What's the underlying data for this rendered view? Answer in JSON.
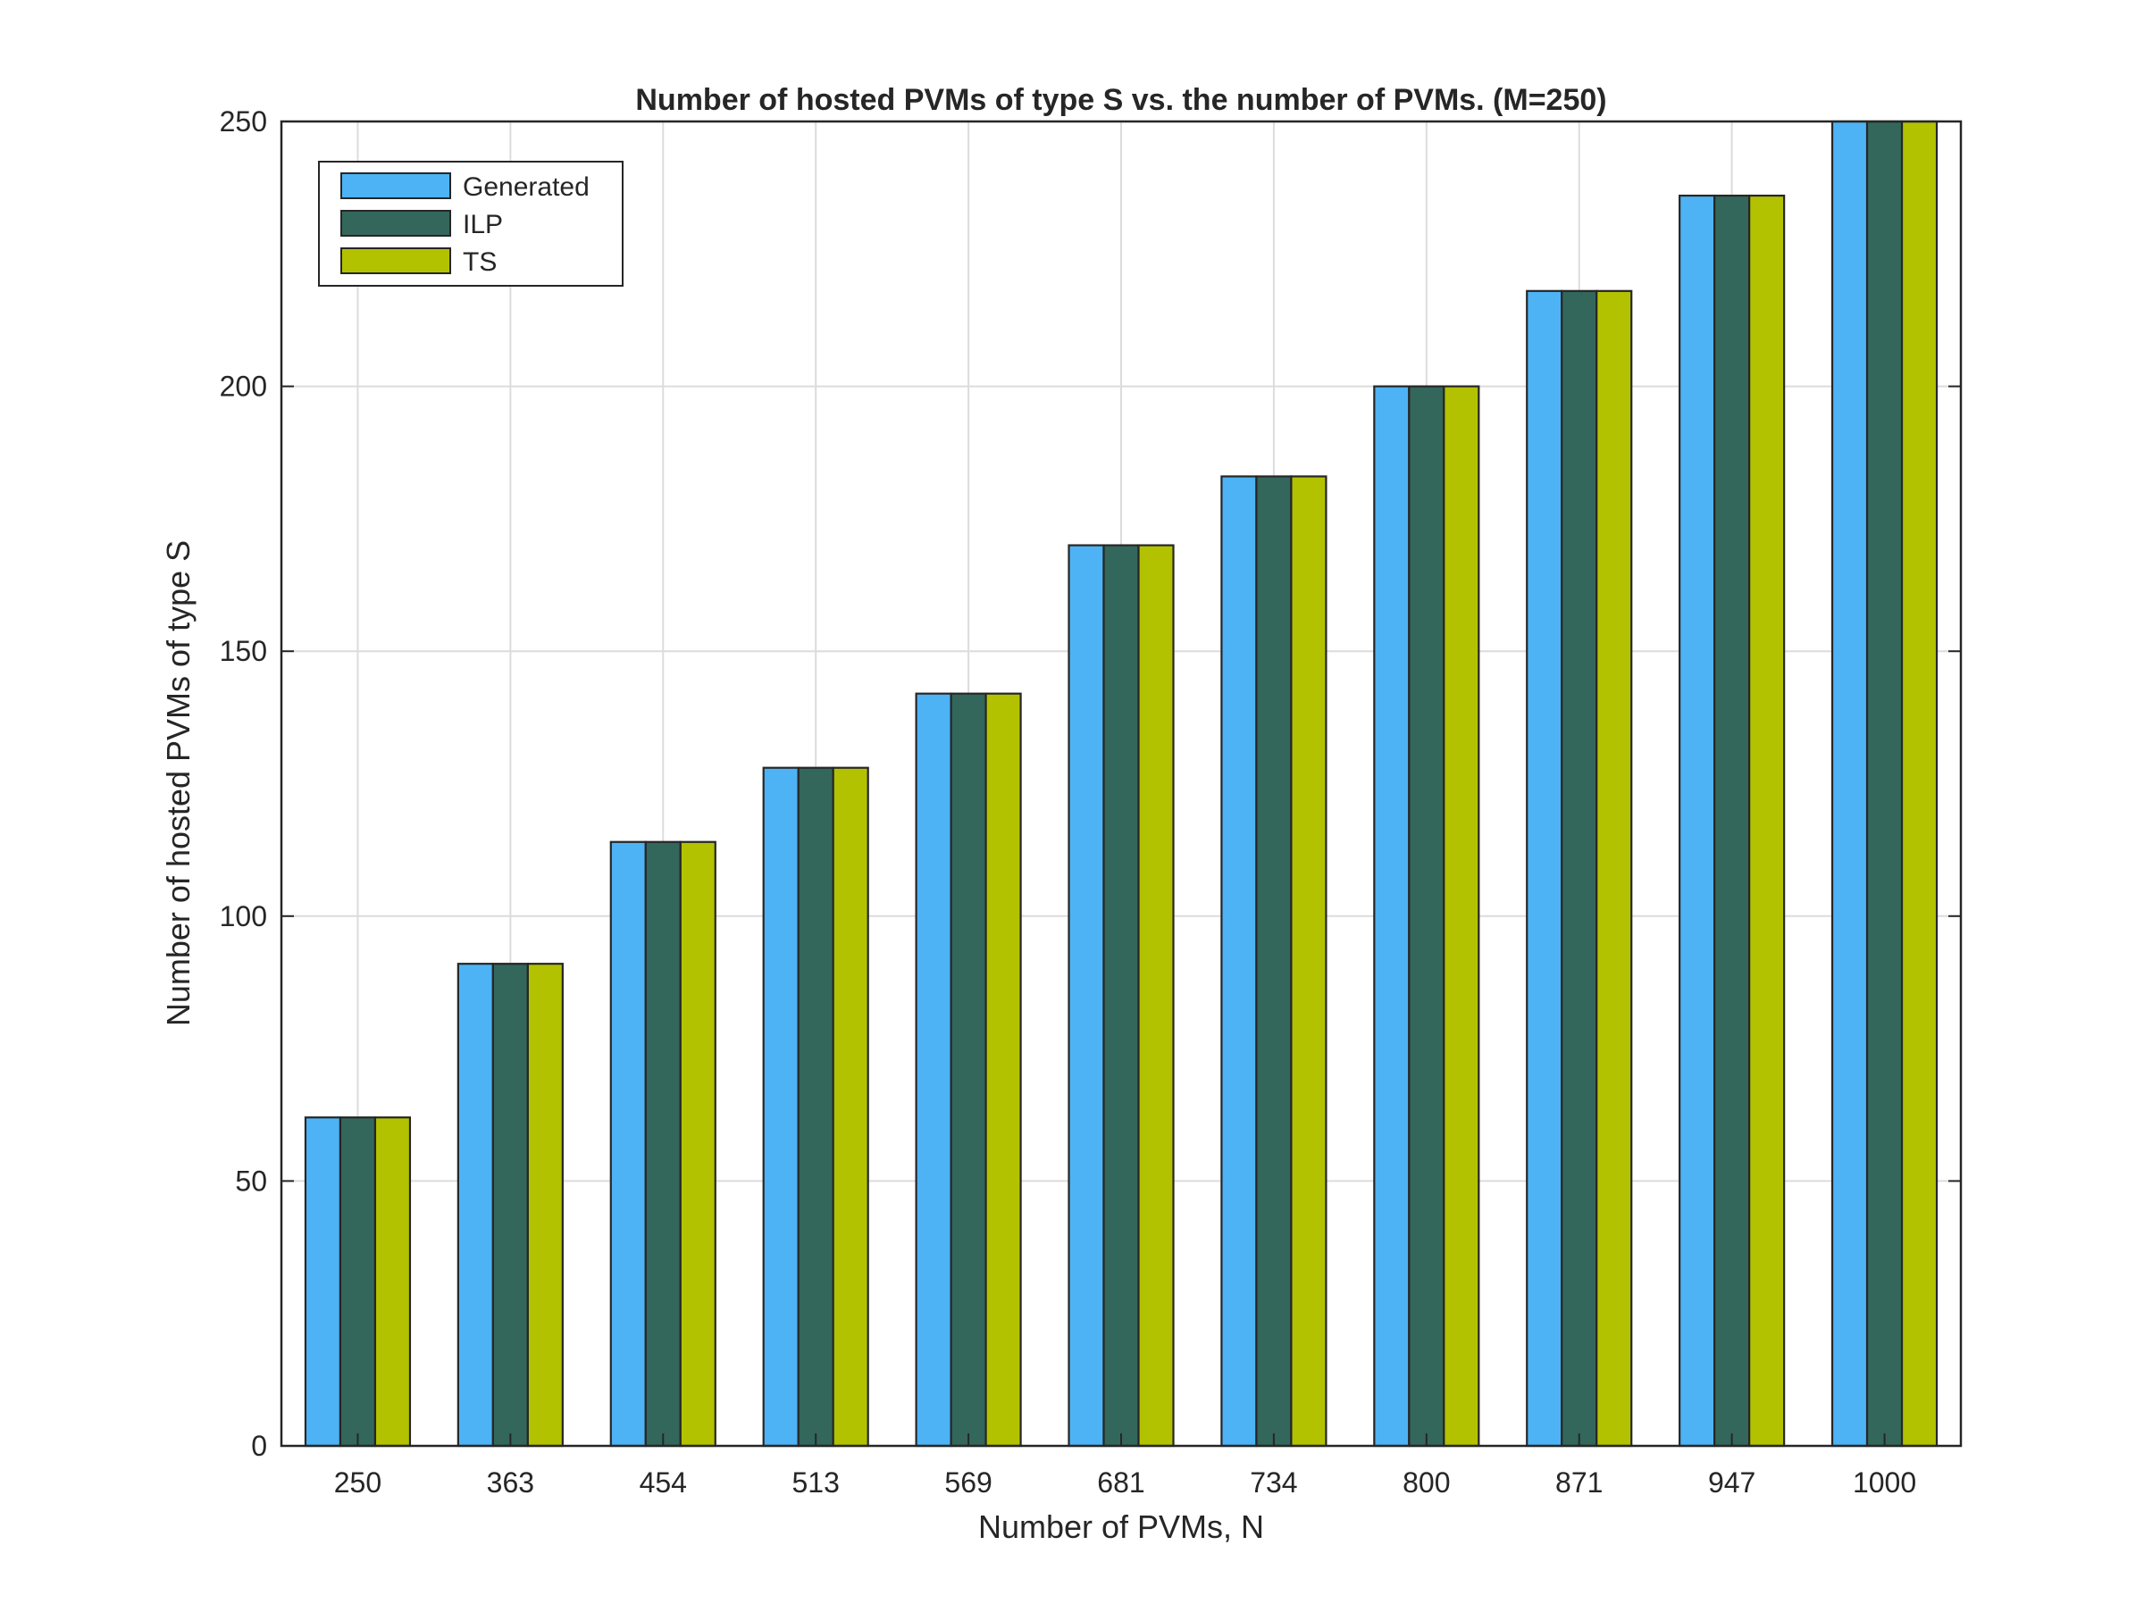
{
  "chart_data": {
    "type": "bar",
    "title": "Number of hosted PVMs of type S vs. the number of PVMs. (M=250)",
    "xlabel": "Number of PVMs, N",
    "ylabel": "Number of hosted PVMs of type S",
    "categories": [
      "250",
      "363",
      "454",
      "513",
      "569",
      "681",
      "734",
      "800",
      "871",
      "947",
      "1000"
    ],
    "series": [
      {
        "name": "Generated",
        "color": "#4DB3F5",
        "values": [
          62,
          91,
          114,
          128,
          142,
          170,
          183,
          200,
          218,
          236,
          250
        ]
      },
      {
        "name": "ILP",
        "color": "#33675B",
        "values": [
          62,
          91,
          114,
          128,
          142,
          170,
          183,
          200,
          218,
          236,
          250
        ]
      },
      {
        "name": "TS",
        "color": "#B3C200",
        "values": [
          62,
          91,
          114,
          128,
          142,
          170,
          183,
          200,
          218,
          236,
          250
        ]
      }
    ],
    "ylim": [
      0,
      250
    ],
    "yticks": [
      "0",
      "50",
      "100",
      "150",
      "200",
      "250"
    ],
    "grid": true,
    "legend_position": "top-left"
  }
}
